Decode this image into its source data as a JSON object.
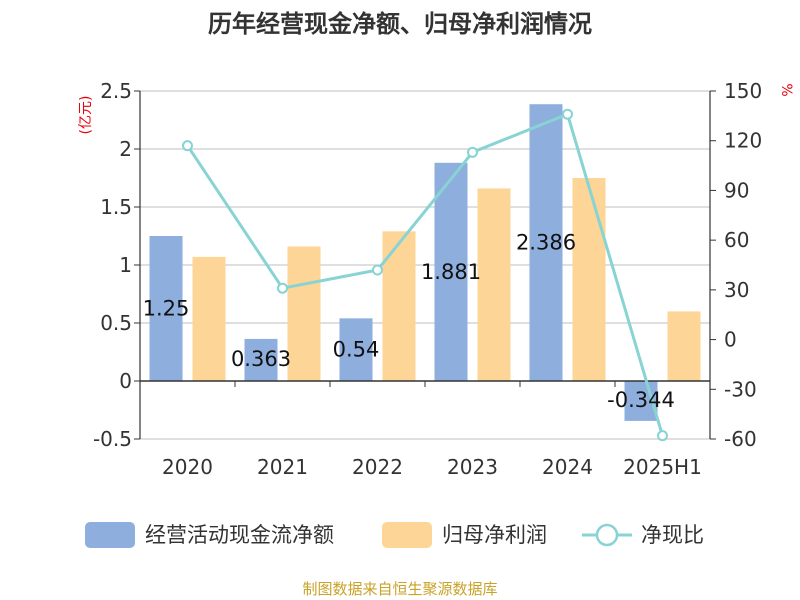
{
  "title": "历年经营现金净额、归母净利润情况",
  "source": "制图数据来自恒生聚源数据库",
  "colors": {
    "cash_flow": "#8eaedd",
    "net_profit": "#fdd597",
    "ratio": "#88d3d3",
    "grid": "#cccccc",
    "axis": "#333333",
    "unit": "#e8000b",
    "source": "#c9a227"
  },
  "chart_data": {
    "type": "bar",
    "title": "历年经营现金净额、归母净利润情况",
    "categories": [
      "2020",
      "2021",
      "2022",
      "2023",
      "2024",
      "2025H1"
    ],
    "y_left": {
      "unit": "(亿元)",
      "range": [
        -0.5,
        2.5
      ],
      "ticks": [
        "-0.5",
        "0",
        "0.5",
        "1",
        "1.5",
        "2",
        "2.5"
      ]
    },
    "y_right": {
      "unit": "%",
      "range": [
        -60,
        150
      ],
      "ticks": [
        "-60",
        "-30",
        "0",
        "30",
        "60",
        "90",
        "120",
        "150"
      ]
    },
    "grid": true,
    "legend_position": "bottom",
    "series": [
      {
        "name": "经营活动现金流净额",
        "kind": "bar",
        "axis": "left",
        "values": [
          1.25,
          0.363,
          0.54,
          1.881,
          2.386,
          -0.344
        ],
        "labels": [
          "1.25",
          "0.363",
          "0.54",
          "1.881",
          "2.386",
          "-0.344"
        ]
      },
      {
        "name": "归母净利润",
        "kind": "bar",
        "axis": "left",
        "values": [
          1.07,
          1.16,
          1.29,
          1.66,
          1.75,
          0.6
        ]
      },
      {
        "name": "净现比",
        "kind": "line",
        "axis": "right",
        "values": [
          117,
          31,
          42,
          113,
          136,
          -58
        ]
      }
    ]
  }
}
